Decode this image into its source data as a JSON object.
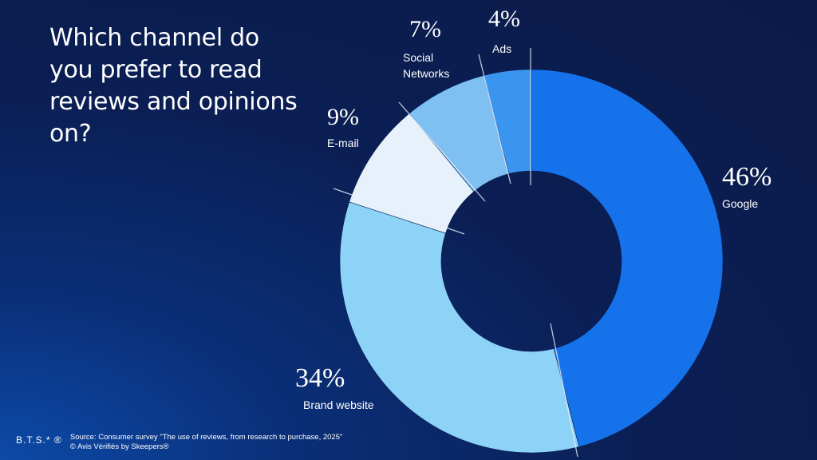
{
  "question": "Which channel do you prefer to read reviews and opinions on?",
  "footer": {
    "brand": "B.T.S.* ®",
    "source": "Source: Consumer survey \"The use of reviews, from research to purchase, 2025\"",
    "copyright": "© Avis Vérifiés by Skeepers®"
  },
  "chart_data": {
    "type": "pie",
    "variant": "donut",
    "title": "Which channel do you prefer to read reviews and opinions on?",
    "slices": [
      {
        "label": "Google",
        "value": 46,
        "value_label": "46%",
        "color": "#1572ea"
      },
      {
        "label": "Brand website",
        "value": 34,
        "value_label": "34%",
        "color": "#8dd3f7"
      },
      {
        "label": "E-mail",
        "value": 9,
        "value_label": "9%",
        "color": "#e6f1fb"
      },
      {
        "label": "Social Networks",
        "value": 7,
        "value_label": "7%",
        "color": "#7dc0f1"
      },
      {
        "label": "Ads",
        "value": 4,
        "value_label": "4%",
        "color": "#3a95ee"
      }
    ]
  }
}
